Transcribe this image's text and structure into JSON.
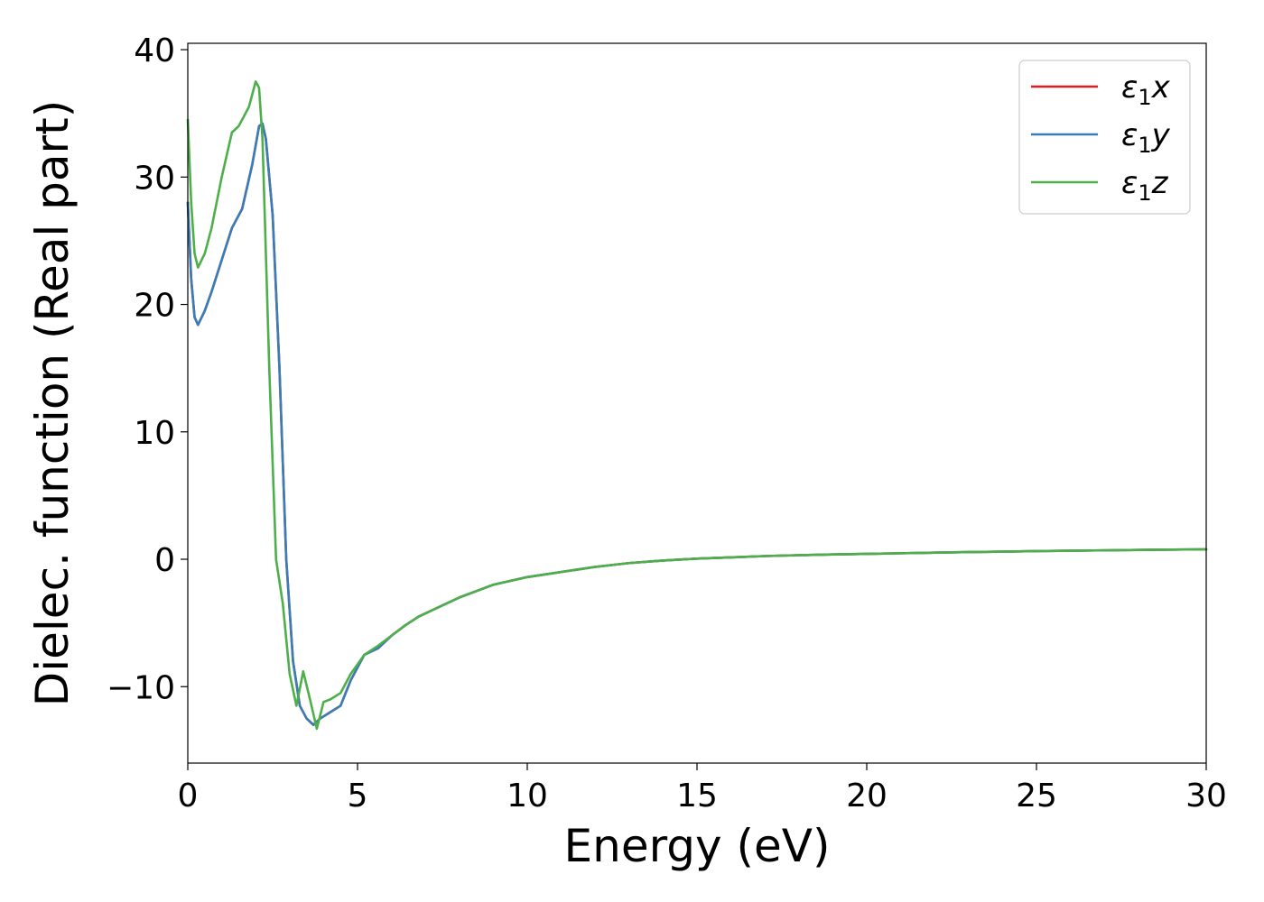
{
  "chart_data": {
    "type": "line",
    "title": "",
    "xlabel": "Energy (eV)",
    "ylabel": "Dielec. function (Real part)",
    "xlim": [
      0,
      30
    ],
    "ylim": [
      -16,
      40.5
    ],
    "x_ticks": [
      0,
      5,
      10,
      15,
      20,
      25,
      30
    ],
    "x_tick_labels": [
      "0",
      "5",
      "10",
      "15",
      "20",
      "25",
      "30"
    ],
    "y_ticks": [
      -10,
      0,
      10,
      20,
      30,
      40
    ],
    "y_tick_labels": [
      "−10",
      "0",
      "10",
      "20",
      "30",
      "40"
    ],
    "grid": false,
    "legend_position": "top-right",
    "series": [
      {
        "name": "ε₁x",
        "legend": {
          "symbol": "ε",
          "subscript": "1",
          "suffix": "x"
        },
        "color": "#e41a1c",
        "x": [
          0,
          0.1,
          0.2,
          0.3,
          0.5,
          0.7,
          1.0,
          1.3,
          1.6,
          1.9,
          2.1,
          2.2,
          2.3,
          2.5,
          2.7,
          2.9,
          3.1,
          3.3,
          3.5,
          3.7,
          3.9,
          4.2,
          4.5,
          4.8,
          5.2,
          5.6,
          6.0,
          6.4,
          6.8,
          7.2,
          7.6,
          8.0,
          8.5,
          9.0,
          9.5,
          10.0,
          11.0,
          12.0,
          13.0,
          14.0,
          15.0,
          16.0,
          17.0,
          18.0,
          19.0,
          20.0,
          21.0,
          22.0,
          23.0,
          24.0,
          25.0,
          26.0,
          27.0,
          28.0,
          29.0,
          30.0
        ],
        "y": [
          28,
          22,
          19,
          18.4,
          19.5,
          21,
          23.5,
          26,
          27.5,
          31,
          34,
          34.2,
          33,
          27,
          15,
          0,
          -8,
          -11.5,
          -12.5,
          -13,
          -12.5,
          -12,
          -11.5,
          -9.5,
          -7.5,
          -7,
          -6,
          -5.2,
          -4.5,
          -4,
          -3.5,
          -3,
          -2.5,
          -2,
          -1.7,
          -1.4,
          -1.0,
          -0.6,
          -0.3,
          -0.1,
          0.05,
          0.15,
          0.25,
          0.32,
          0.38,
          0.42,
          0.47,
          0.52,
          0.56,
          0.6,
          0.64,
          0.67,
          0.7,
          0.73,
          0.76,
          0.78
        ]
      },
      {
        "name": "ε₁y",
        "legend": {
          "symbol": "ε",
          "subscript": "1",
          "suffix": "y"
        },
        "color": "#377eb8",
        "x": [
          0,
          0.1,
          0.2,
          0.3,
          0.5,
          0.7,
          1.0,
          1.3,
          1.6,
          1.9,
          2.1,
          2.2,
          2.3,
          2.5,
          2.7,
          2.9,
          3.1,
          3.3,
          3.5,
          3.7,
          3.9,
          4.2,
          4.5,
          4.8,
          5.2,
          5.6,
          6.0,
          6.4,
          6.8,
          7.2,
          7.6,
          8.0,
          8.5,
          9.0,
          9.5,
          10.0,
          11.0,
          12.0,
          13.0,
          14.0,
          15.0,
          16.0,
          17.0,
          18.0,
          19.0,
          20.0,
          21.0,
          22.0,
          23.0,
          24.0,
          25.0,
          26.0,
          27.0,
          28.0,
          29.0,
          30.0
        ],
        "y": [
          28,
          22,
          19,
          18.4,
          19.5,
          21,
          23.5,
          26,
          27.5,
          31,
          34,
          34.2,
          33,
          27,
          15,
          0,
          -8,
          -11.5,
          -12.5,
          -13,
          -12.5,
          -12,
          -11.5,
          -9.5,
          -7.5,
          -7,
          -6,
          -5.2,
          -4.5,
          -4,
          -3.5,
          -3,
          -2.5,
          -2,
          -1.7,
          -1.4,
          -1.0,
          -0.6,
          -0.3,
          -0.1,
          0.05,
          0.15,
          0.25,
          0.32,
          0.38,
          0.42,
          0.47,
          0.52,
          0.56,
          0.6,
          0.64,
          0.67,
          0.7,
          0.73,
          0.76,
          0.78
        ]
      },
      {
        "name": "ε₁z",
        "legend": {
          "symbol": "ε",
          "subscript": "1",
          "suffix": "z"
        },
        "color": "#4daf4a",
        "x": [
          0,
          0.1,
          0.2,
          0.3,
          0.5,
          0.7,
          1.0,
          1.3,
          1.5,
          1.8,
          2.0,
          2.1,
          2.2,
          2.4,
          2.6,
          2.8,
          3.0,
          3.2,
          3.4,
          3.6,
          3.8,
          4.0,
          4.2,
          4.5,
          4.8,
          5.2,
          5.6,
          6.0,
          6.4,
          6.8,
          7.2,
          7.6,
          8.0,
          8.5,
          9.0,
          9.5,
          10.0,
          11.0,
          12.0,
          13.0,
          14.0,
          15.0,
          16.0,
          17.0,
          18.0,
          19.0,
          20.0,
          21.0,
          22.0,
          23.0,
          24.0,
          25.0,
          26.0,
          27.0,
          28.0,
          29.0,
          30.0
        ],
        "y": [
          34.5,
          28,
          24,
          22.9,
          24,
          26,
          30,
          33.5,
          34,
          35.5,
          37.5,
          37,
          33,
          15,
          0,
          -3.5,
          -9,
          -11.5,
          -8.8,
          -11,
          -13.3,
          -11.2,
          -11,
          -10.5,
          -9,
          -7.5,
          -6.8,
          -6,
          -5.2,
          -4.5,
          -4,
          -3.5,
          -3,
          -2.5,
          -2,
          -1.7,
          -1.4,
          -1.0,
          -0.6,
          -0.3,
          -0.1,
          0.05,
          0.15,
          0.25,
          0.32,
          0.38,
          0.42,
          0.47,
          0.52,
          0.56,
          0.6,
          0.64,
          0.67,
          0.7,
          0.73,
          0.76,
          0.78
        ]
      }
    ]
  }
}
